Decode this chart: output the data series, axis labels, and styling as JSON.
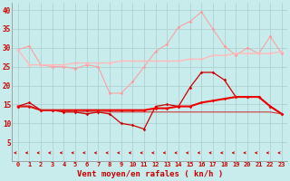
{
  "xlabel": "Vent moyen/en rafales ( kn/h )",
  "x": [
    0,
    1,
    2,
    3,
    4,
    5,
    6,
    7,
    8,
    9,
    10,
    11,
    12,
    13,
    14,
    15,
    16,
    17,
    18,
    19,
    20,
    21,
    22,
    23
  ],
  "line1": [
    29.5,
    30.5,
    25.5,
    25.0,
    25.0,
    24.5,
    25.5,
    25.0,
    18.0,
    18.0,
    21.0,
    25.0,
    29.0,
    31.0,
    35.5,
    37.0,
    39.5,
    35.0,
    30.5,
    28.0,
    30.0,
    28.5,
    33.0,
    28.5
  ],
  "line2": [
    29.5,
    25.5,
    25.5,
    25.5,
    25.5,
    26.0,
    26.0,
    26.0,
    26.0,
    26.5,
    26.5,
    26.5,
    26.5,
    26.5,
    26.5,
    27.0,
    27.0,
    28.0,
    28.0,
    28.5,
    28.5,
    28.5,
    28.5,
    29.0
  ],
  "line3": [
    14.5,
    15.5,
    13.5,
    13.5,
    13.0,
    13.0,
    12.5,
    13.0,
    12.5,
    10.0,
    9.5,
    8.5,
    14.5,
    15.0,
    14.5,
    19.5,
    23.5,
    23.5,
    21.5,
    17.0,
    17.0,
    17.0,
    14.5,
    12.5
  ],
  "line4": [
    14.5,
    14.5,
    13.5,
    13.5,
    13.5,
    13.5,
    13.5,
    13.5,
    13.5,
    13.5,
    13.5,
    13.5,
    14.0,
    14.0,
    14.5,
    14.5,
    15.5,
    16.0,
    16.5,
    17.0,
    17.0,
    17.0,
    14.5,
    12.5
  ],
  "line5": [
    14.5,
    14.5,
    13.5,
    13.5,
    13.5,
    13.0,
    13.0,
    13.0,
    13.0,
    13.0,
    13.0,
    13.0,
    13.0,
    13.0,
    13.0,
    13.0,
    13.0,
    13.0,
    13.0,
    13.0,
    13.0,
    13.0,
    13.0,
    12.5
  ],
  "bg_color": "#c8ecec",
  "grid_color": "#aacccc",
  "line1_color": "#ff9999",
  "line2_color": "#ffbbbb",
  "line3_color": "#cc0000",
  "line4_color": "#ee0000",
  "line5_color": "#cc2222",
  "arrow_color": "#cc0000",
  "ylim": [
    0,
    42
  ],
  "yticks": [
    5,
    10,
    15,
    20,
    25,
    30,
    35,
    40
  ]
}
